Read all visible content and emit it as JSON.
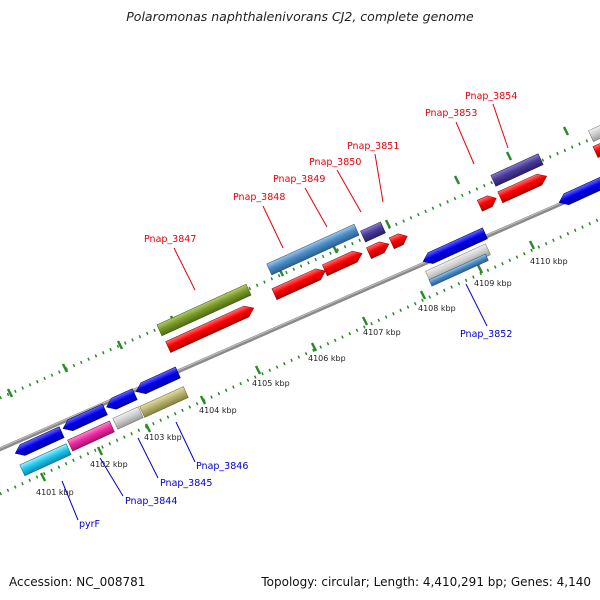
{
  "title": "Polaromonas naphthalenivorans CJ2, complete genome",
  "footer": {
    "accession": "Accession: NC_008781",
    "summary": "Topology: circular; Length: 4,410,291 bp; Genes: 4,140"
  },
  "colors": {
    "backbone": "#8a8a8a",
    "forward_label": "#e8000b",
    "reverse_label": "#0000cc",
    "tick": "#2a8a2a"
  },
  "ticks": [
    {
      "label": "4101 kbp"
    },
    {
      "label": "4102 kbp"
    },
    {
      "label": "4103 kbp"
    },
    {
      "label": "4104 kbp"
    },
    {
      "label": "4105 kbp"
    },
    {
      "label": "4106 kbp"
    },
    {
      "label": "4107 kbp"
    },
    {
      "label": "4108 kbp"
    },
    {
      "label": "4109 kbp"
    },
    {
      "label": "4110 kbp"
    }
  ],
  "gene_labels": {
    "pnap_3847": "Pnap_3847",
    "pnap_3848": "Pnap_3848",
    "pnap_3849": "Pnap_3849",
    "pnap_3850": "Pnap_3850",
    "pnap_3851": "Pnap_3851",
    "pnap_3853": "Pnap_3853",
    "pnap_3854": "Pnap_3854",
    "pnap_3852": "Pnap_3852",
    "pnap_3846": "Pnap_3846",
    "pnap_3845": "Pnap_3845",
    "pnap_3844": "Pnap_3844",
    "pyrf": "pyrF"
  }
}
